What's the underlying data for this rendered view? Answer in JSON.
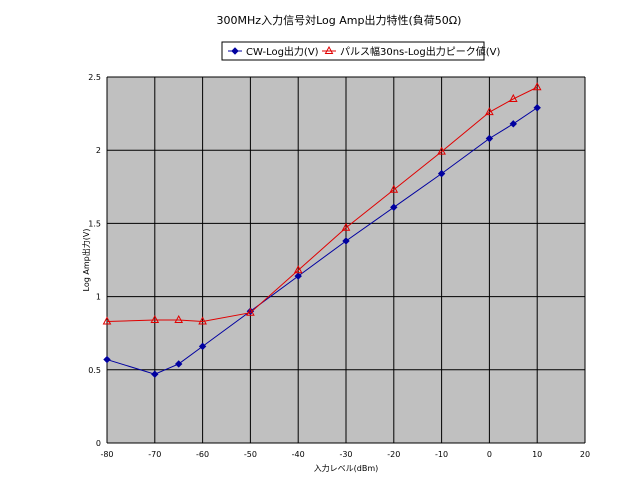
{
  "chart_data": {
    "type": "line",
    "title": "300MHz入力信号対Log Amp出力特性(負荷50Ω)",
    "xlabel": "入力レベル(dBm)",
    "ylabel": "Log Amp出力(V)",
    "xlim": [
      -80,
      20
    ],
    "ylim": [
      0,
      2.5
    ],
    "x_ticks": [
      "-80",
      "-70",
      "-60",
      "-50",
      "-40",
      "-30",
      "-20",
      "-10",
      "0",
      "10",
      "20"
    ],
    "y_ticks": [
      "0",
      "0.5",
      "1",
      "1.5",
      "2",
      "2.5"
    ],
    "x_tick_values": [
      -80,
      -70,
      -60,
      -50,
      -40,
      -30,
      -20,
      -10,
      0,
      10,
      20
    ],
    "y_tick_values": [
      0,
      0.5,
      1,
      1.5,
      2,
      2.5
    ],
    "grid": true,
    "legend_position": "top",
    "series": [
      {
        "name": "CW-Log出力(V)",
        "color": "#0000a0",
        "marker": "diamond",
        "x": [
          -80,
          -70,
          -65,
          -60,
          -50,
          -40,
          -30,
          -20,
          -10,
          0,
          5,
          10
        ],
        "y": [
          0.57,
          0.47,
          0.54,
          0.66,
          0.9,
          1.14,
          1.38,
          1.61,
          1.84,
          2.08,
          2.18,
          2.29
        ]
      },
      {
        "name": "パルス幅30ns-Log出力ピーク値(V)",
        "color": "#e00000",
        "marker": "triangle",
        "x": [
          -80,
          -70,
          -65,
          -60,
          -50,
          -40,
          -30,
          -20,
          -10,
          0,
          5,
          10
        ],
        "y": [
          0.83,
          0.84,
          0.84,
          0.83,
          0.89,
          1.18,
          1.47,
          1.73,
          1.99,
          2.26,
          2.35,
          2.43
        ]
      }
    ],
    "plot_background": "#c0c0c0",
    "grid_color": "#000000"
  }
}
